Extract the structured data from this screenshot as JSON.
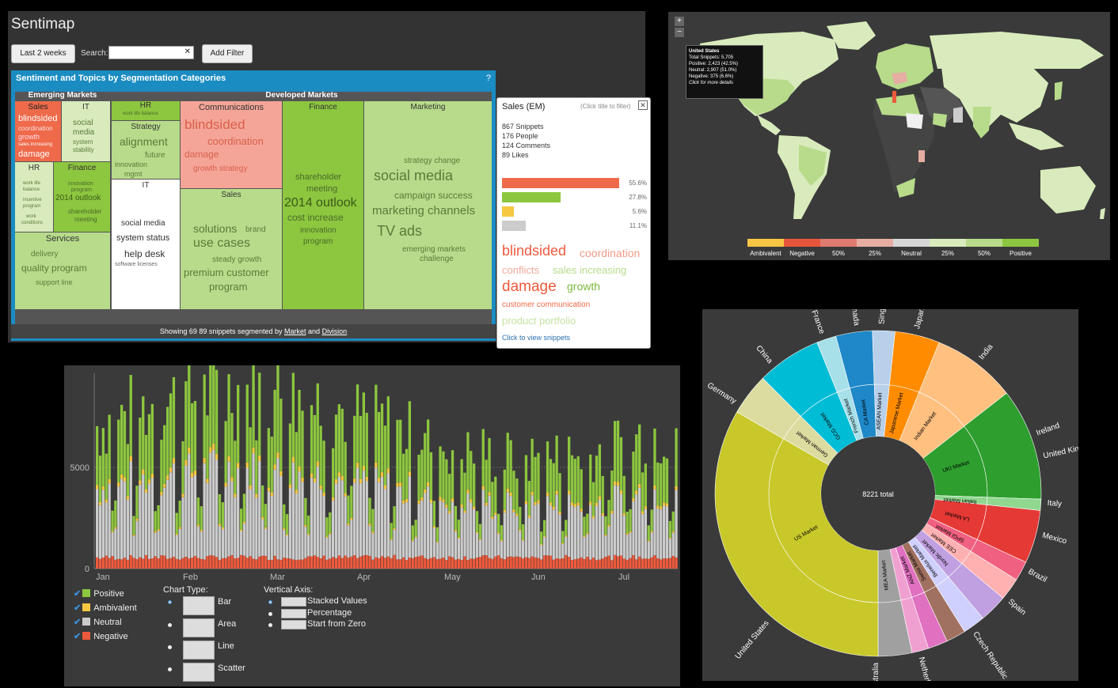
{
  "sentimap": {
    "title": "Sentimap",
    "btn_range": "Last 2 weeks",
    "search_label": "Search:",
    "search_value": "",
    "search_clear": "✕",
    "btn_filter": "Add Filter",
    "panel_title": "Sentiment and Topics by Segmentation Categories",
    "help": "?",
    "group_emerging": "Emerging Markets",
    "group_developed": "Developed Markets",
    "footer_prefix": "Showing 69 89 snippets segmented by",
    "footer_link1": "Market",
    "footer_and": "and",
    "footer_link2": "Division",
    "cells": {
      "sales_em": {
        "head": "Sales",
        "w": [
          "blindsided",
          "coordination",
          "growth",
          "sales increasing",
          "damage"
        ]
      },
      "it_em": {
        "head": "IT",
        "w": [
          "social",
          "media",
          "system",
          "stability"
        ]
      },
      "hr_em": {
        "head": "HR",
        "w": [
          "work life",
          "balance",
          "incentive",
          "program",
          "work",
          "conditions"
        ]
      },
      "fin_em": {
        "head": "Finance",
        "w": [
          "innovation",
          "program",
          "2014 outlook",
          "shareholder",
          "meeting"
        ]
      },
      "services": {
        "head": "Services",
        "w": [
          "delivery",
          "quality program",
          "support line"
        ]
      },
      "hr_dm": {
        "head": "HR",
        "w": [
          "work life balance"
        ]
      },
      "strategy": {
        "head": "Strategy",
        "w": [
          "alignment",
          "future",
          "innovation",
          "mgmt"
        ]
      },
      "comms": {
        "head": "Communications",
        "w": [
          "blindsided",
          "coordination",
          "damage",
          "growth strategy"
        ]
      },
      "finance": {
        "head": "Finance",
        "w": [
          "shareholder",
          "meeting",
          "2014 outlook",
          "cost increase",
          "innovation",
          "program"
        ]
      },
      "marketing": {
        "head": "Marketing",
        "w": [
          "strategy change",
          "social media",
          "campaign success",
          "marketing channels",
          "TV ads",
          "emerging markets",
          "challenge"
        ]
      },
      "it_dm": {
        "head": "IT",
        "w": [
          "social media",
          "system status",
          "help desk",
          "software licenses"
        ]
      },
      "sales_dm": {
        "head": "Sales",
        "w": [
          "solutions",
          "brand",
          "use cases",
          "steady growth",
          "premium customer",
          "program"
        ]
      }
    },
    "popup": {
      "title": "Sales (EM)",
      "hint": "(Click title to filter)",
      "close": "✕",
      "stats": [
        "867 Snippets",
        "176 People",
        "124 Comments",
        "89 Likes"
      ],
      "bars": [
        {
          "pct": "55.6%",
          "frac": 0.556,
          "color": "#ee6a4a"
        },
        {
          "pct": "27.8%",
          "frac": 0.278,
          "color": "#8dc63f"
        },
        {
          "pct": "5.6%",
          "frac": 0.056,
          "color": "#f5c842"
        },
        {
          "pct": "11.1%",
          "frac": 0.111,
          "color": "#cccccc"
        }
      ],
      "words": [
        "blindsided",
        "coordination",
        "conflicts",
        "sales increasing",
        "damage",
        "growth",
        "customer communication",
        "product portfolio"
      ],
      "link": "Click to view snippets"
    }
  },
  "worldmap": {
    "zoom_in": "+",
    "zoom_out": "−",
    "tooltip": [
      "United States",
      "Total Snippets: 5,705",
      "Positive: 2,423 (42.5%)",
      "Neutral: 2,907 (51.0%)",
      "Negative: 375 (6.6%)",
      "Click for more details"
    ],
    "legend": [
      {
        "label": "Ambivalent",
        "color": "#f7c744"
      },
      {
        "label": "Negative",
        "color": "#e8553d"
      },
      {
        "label": "50%",
        "color": "#de7b6e"
      },
      {
        "label": "25%",
        "color": "#e6ada3"
      },
      {
        "label": "Neutral",
        "color": "#d6d6d6"
      },
      {
        "label": "25%",
        "color": "#d9ebbc"
      },
      {
        "label": "50%",
        "color": "#b7db8a"
      },
      {
        "label": "Positive",
        "color": "#8dc63f"
      }
    ]
  },
  "stackchart": {
    "months": [
      "Jan",
      "Feb",
      "Mar",
      "Apr",
      "May",
      "Jun",
      "Jul"
    ],
    "ytick_0": "0",
    "ytick_5000": "5000",
    "series": [
      {
        "name": "Positive",
        "color": "#8dc63f"
      },
      {
        "name": "Ambivalent",
        "color": "#f5c842"
      },
      {
        "name": "Neutral",
        "color": "#cccccc"
      },
      {
        "name": "Negative",
        "color": "#ee5a3c"
      }
    ],
    "check": "✔",
    "chart_type_label": "Chart Type:",
    "chart_types": [
      "Bar",
      "Area",
      "Line",
      "Scatter"
    ],
    "vaxis_label": "Vertical Axis:",
    "vaxis_opts": [
      "Stacked Values",
      "Percentage",
      "Start from Zero"
    ]
  },
  "sunburst": {
    "center": "8221 total",
    "markets": [
      "German Market",
      "GCG Market",
      "French Market",
      "CA Market",
      "ASEAN Market",
      "Japanese Market",
      "Indian Market",
      "UKI Market",
      "Italian Market",
      "LA Market",
      "SPGI Market",
      "CEE Market",
      "Nordic Market",
      "Benelux Market",
      "Swiss Market",
      "ANZ Market",
      "MEA Market",
      "US Market"
    ],
    "countries": [
      "Germany",
      "China",
      "France",
      "Canada",
      "Singapore",
      "Japan",
      "India",
      "Ireland",
      "United Kingdom",
      "Italy",
      "Mexico",
      "Brazil",
      "Spain",
      "Czech Republic",
      "Netherland",
      "Australia",
      "United States"
    ]
  }
}
